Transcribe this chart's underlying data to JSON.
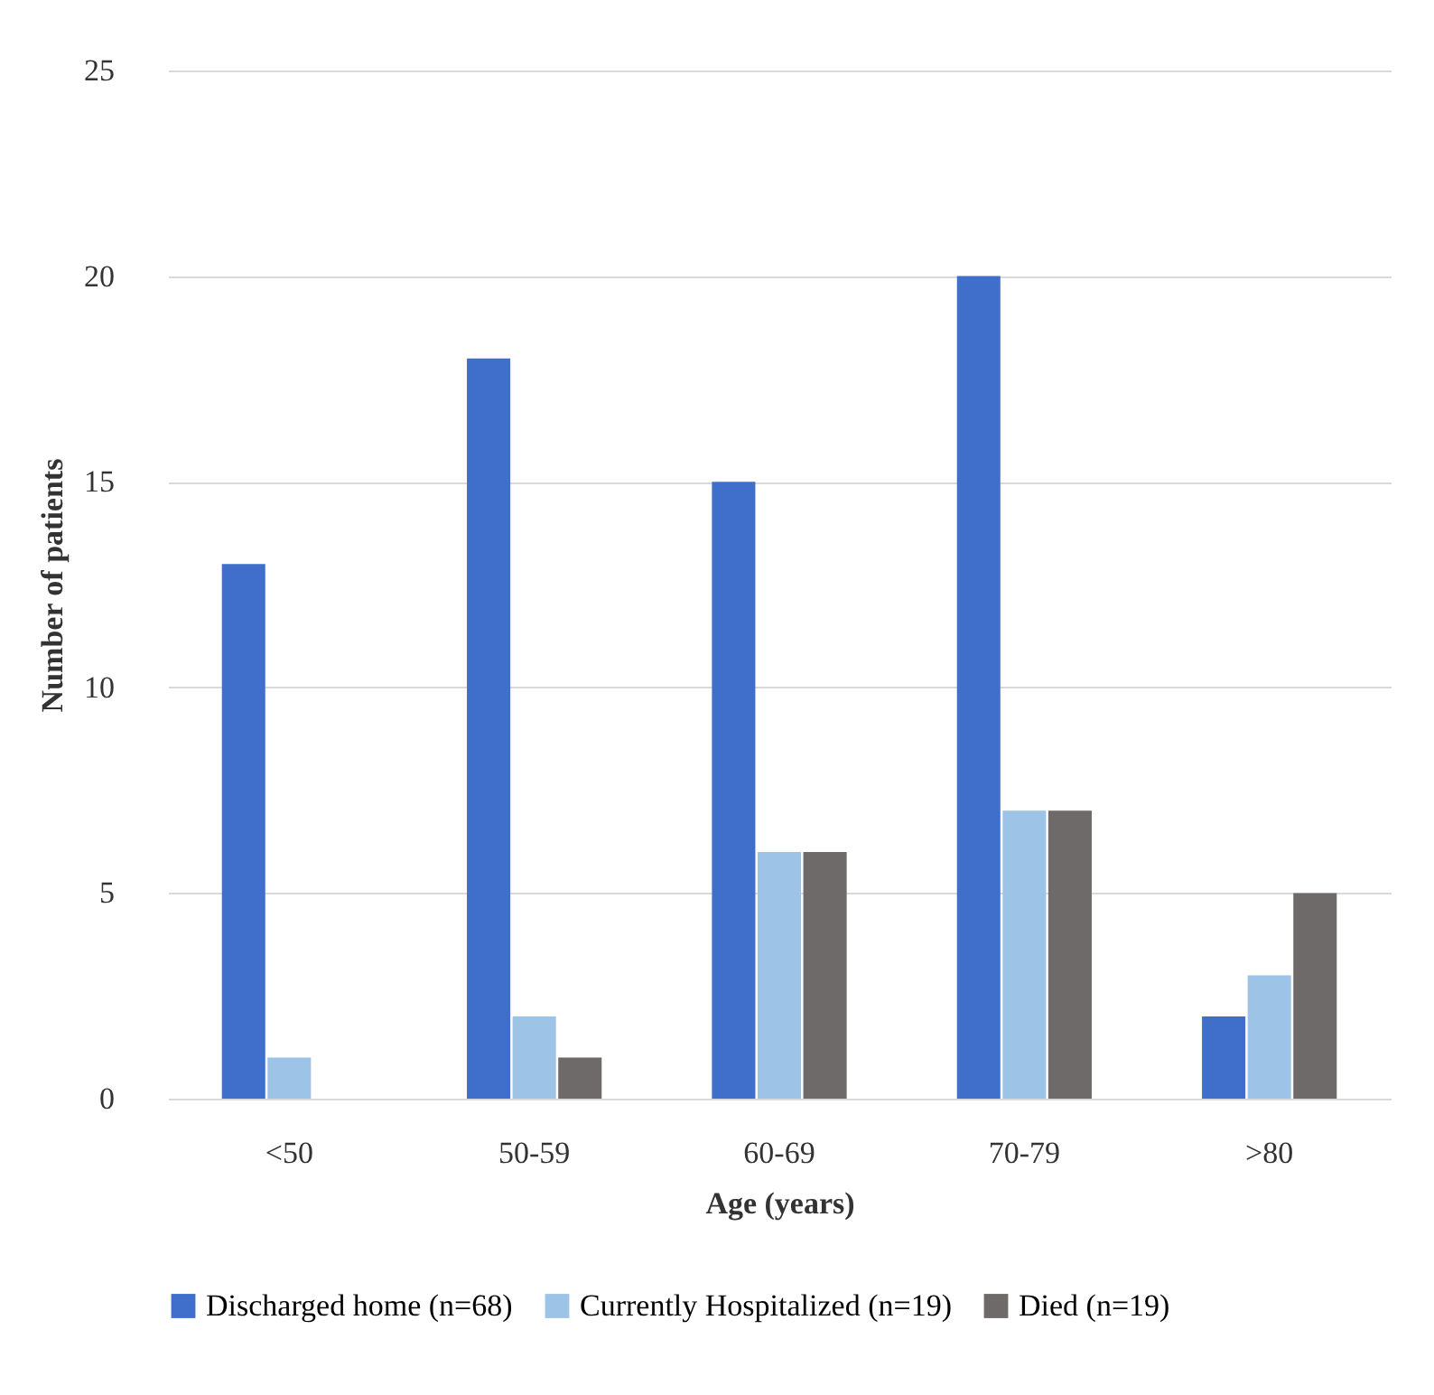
{
  "chart_data": {
    "type": "bar",
    "xlabel": "Age (years)",
    "ylabel": "Number of patients",
    "categories": [
      "<50",
      "50-59",
      "60-69",
      "70-79",
      ">80"
    ],
    "series": [
      {
        "name": "Discharged home (n=68)",
        "color": "#3f6fca",
        "values": [
          13,
          18,
          15,
          20,
          2
        ]
      },
      {
        "name": "Currently Hospitalized (n=19)",
        "color": "#9dc3e6",
        "values": [
          1,
          2,
          6,
          7,
          3
        ]
      },
      {
        "name": "Died (n=19)",
        "color": "#6f6a6a",
        "values": [
          0,
          1,
          6,
          7,
          5
        ]
      }
    ],
    "ylim": [
      0,
      25
    ],
    "yticks": [
      0,
      5,
      10,
      15,
      20,
      25
    ],
    "grid": "y",
    "legend": "bottom"
  }
}
